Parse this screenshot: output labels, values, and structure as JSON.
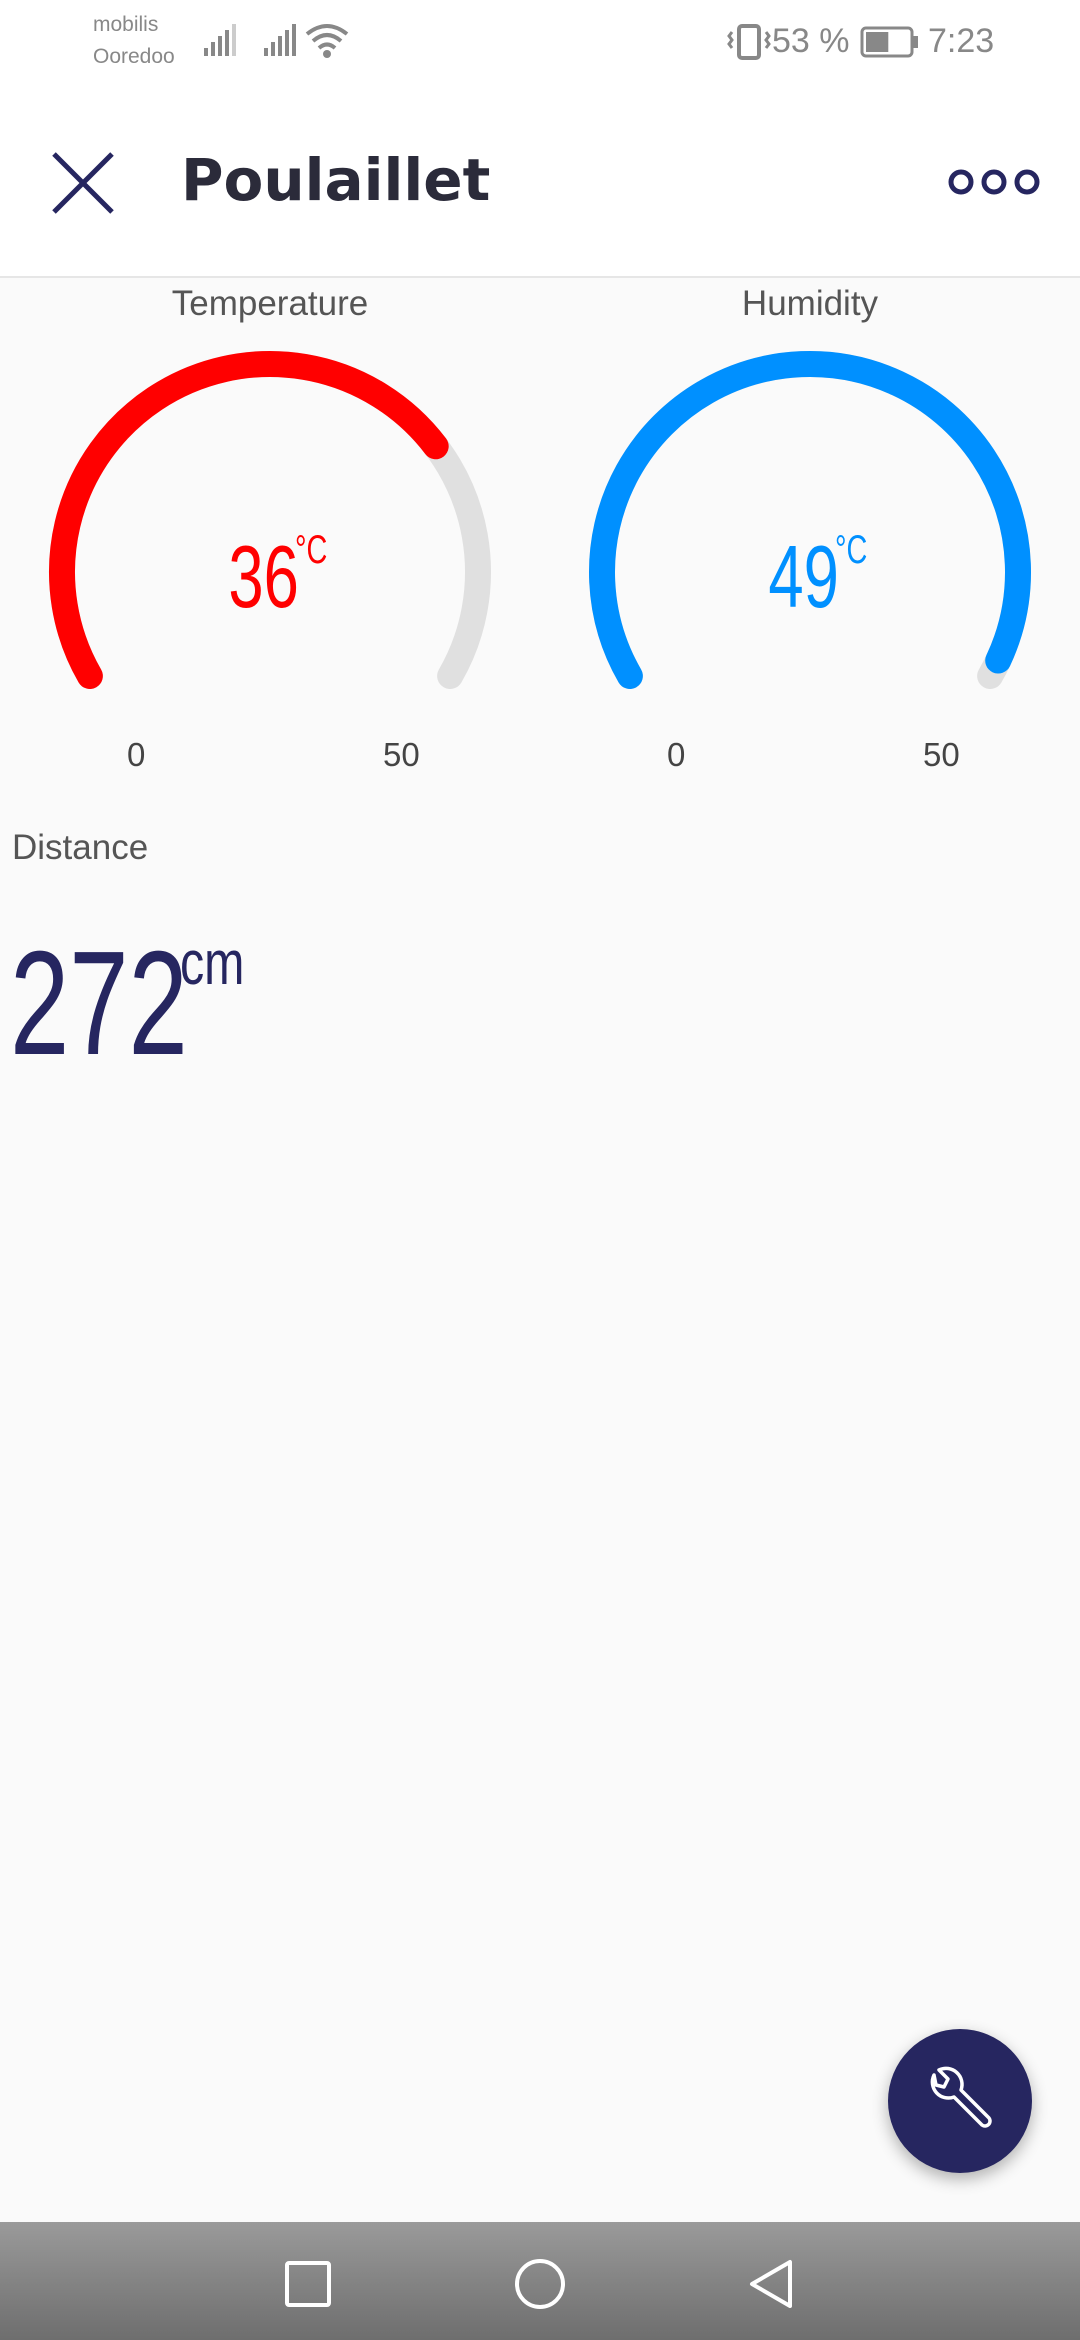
{
  "status_bar": {
    "carrier_1": "mobilis",
    "carrier_2": "Ooredoo",
    "battery_percent": "53 %",
    "battery_level": 0.53,
    "time": "7:23"
  },
  "app_bar": {
    "title": "Poulaillet"
  },
  "gauges": {
    "temperature": {
      "label": "Temperature",
      "value": "36",
      "unit": "°C",
      "min": "0",
      "max": "50",
      "value_num": 36,
      "min_num": 0,
      "max_num": 50,
      "color": "#ff0000",
      "track_color": "#e0e0e0"
    },
    "humidity": {
      "label": "Humidity",
      "value": "49",
      "unit": "°C",
      "min": "0",
      "max": "50",
      "value_num": 49,
      "min_num": 0,
      "max_num": 50,
      "color": "#0090ff",
      "track_color": "#e0e0e0"
    }
  },
  "distance": {
    "label": "Distance",
    "value": "272",
    "unit": "cm",
    "color": "#262660"
  },
  "fab": {
    "icon": "wrench-icon",
    "color": "#262660"
  },
  "nav": {
    "recent_icon": "square-icon",
    "home_icon": "circle-icon",
    "back_icon": "triangle-back-icon"
  }
}
